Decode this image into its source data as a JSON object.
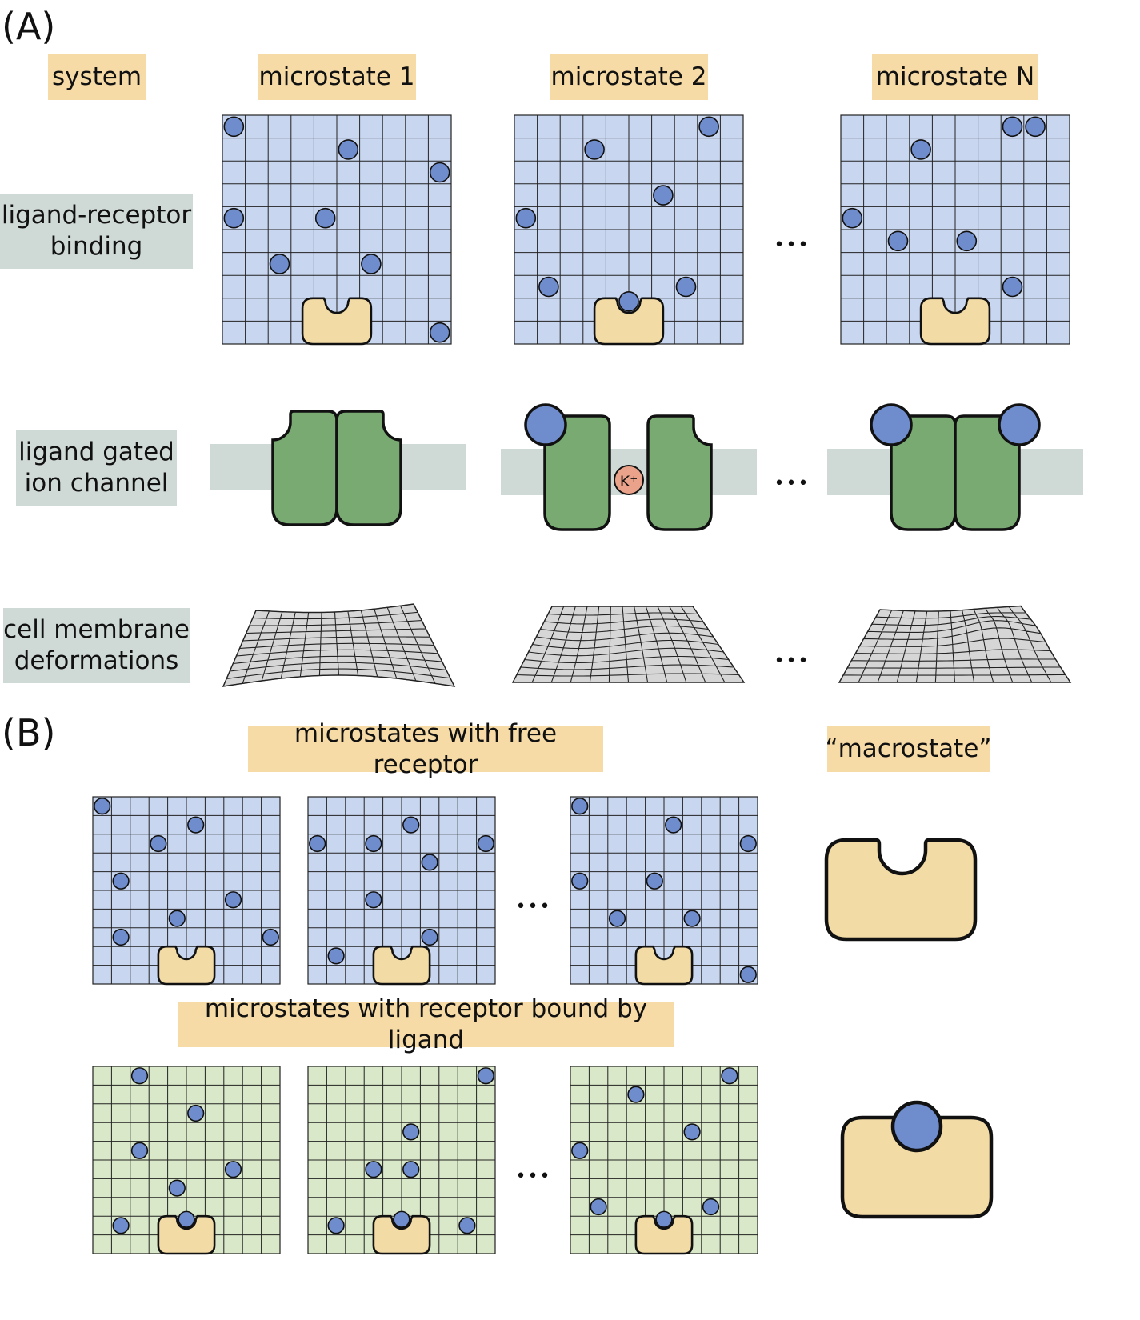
{
  "panel_a": {
    "letter": "(A)",
    "col_system": "system",
    "col_1": "microstate 1",
    "col_2": "microstate 2",
    "col_n": "microstate N",
    "row_1": [
      "ligand-receptor",
      "binding"
    ],
    "row_2": [
      "ligand gated",
      "ion channel"
    ],
    "row_3": [
      "cell membrane",
      "deformations"
    ],
    "ellipsis": "•••",
    "ion_label": "K⁺"
  },
  "panel_b": {
    "letter": "(B)",
    "free_title": "microstates with free receptor",
    "bound_title": "microstates with receptor bound by ligand",
    "macro_title": "“macrostate”",
    "ellipsis": "•••"
  },
  "colors": {
    "lattice_blue": "#c9d6ef",
    "lattice_green": "#d9e8c8",
    "ligand": "#6f8ccc",
    "receptor": "#f3dba6",
    "channel": "#79aa72",
    "membrane": "#cfd9d5",
    "ion": "#eaa38a",
    "label_tan": "#f6dba6",
    "label_gray": "#cfd9d5"
  }
}
